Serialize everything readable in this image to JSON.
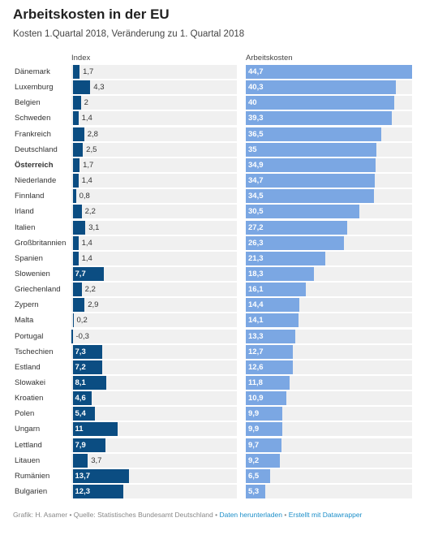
{
  "title": "Arbeitskosten in der EU",
  "subtitle": "Kosten 1.Quartal 2018, Veränderung zu 1. Quartal 2018",
  "footer": {
    "credit": "Grafik: H. Asamer",
    "sep1": " • ",
    "source": "Quelle: Statistisches Bundesamt Deutschland",
    "sep2": " • ",
    "download_link": "Daten herunterladen",
    "sep3": " • ",
    "made_with_link": "Erstellt mit Datawrapper"
  },
  "colors": {
    "index_bar": "#0b4d82",
    "cost_bar": "#7ba7e3",
    "track": "#f0f0f0",
    "link": "#1d8fc9"
  },
  "chart_data": {
    "type": "bar",
    "orientation": "horizontal",
    "categories": [
      "Dänemark",
      "Luxemburg",
      "Belgien",
      "Schweden",
      "Frankreich",
      "Deutschland",
      "Österreich",
      "Niederlande",
      "Finnland",
      "Irland",
      "Italien",
      "Großbritannien",
      "Spanien",
      "Slowenien",
      "Griechenland",
      "Zypern",
      "Malta",
      "Portugal",
      "Tschechien",
      "Estland",
      "Slowakei",
      "Kroatien",
      "Polen",
      "Ungarn",
      "Lettland",
      "Litauen",
      "Rumänien",
      "Bulgarien"
    ],
    "highlighted_category": "Österreich",
    "series": [
      {
        "name": "Index",
        "values": [
          1.7,
          4.3,
          2,
          1.4,
          2.8,
          2.5,
          1.7,
          1.4,
          0.8,
          2.2,
          3.1,
          1.4,
          1.4,
          7.7,
          2.2,
          2.9,
          0.2,
          -0.3,
          7.3,
          7.2,
          8.1,
          4.6,
          5.4,
          11,
          7.9,
          3.7,
          13.7,
          12.3
        ],
        "labels": [
          "1,7",
          "4,3",
          "2",
          "1,4",
          "2,8",
          "2,5",
          "1,7",
          "1,4",
          "0,8",
          "2,2",
          "3,1",
          "1,4",
          "1,4",
          "7,7",
          "2,2",
          "2,9",
          "0,2",
          "-0,3",
          "7,3",
          "7,2",
          "8,1",
          "4,6",
          "5,4",
          "11",
          "7,9",
          "3,7",
          "13,7",
          "12,3"
        ],
        "xlim": [
          -0.3,
          40
        ]
      },
      {
        "name": "Arbeitskosten",
        "values": [
          44.7,
          40.3,
          40,
          39.3,
          36.5,
          35,
          34.9,
          34.7,
          34.5,
          30.5,
          27.2,
          26.3,
          21.3,
          18.3,
          16.1,
          14.4,
          14.1,
          13.3,
          12.7,
          12.6,
          11.8,
          10.9,
          9.9,
          9.9,
          9.7,
          9.2,
          6.5,
          5.3
        ],
        "labels": [
          "44,7",
          "40,3",
          "40",
          "39,3",
          "36,5",
          "35",
          "34,9",
          "34,7",
          "34,5",
          "30,5",
          "27,2",
          "26,3",
          "21,3",
          "18,3",
          "16,1",
          "14,4",
          "14,1",
          "13,3",
          "12,7",
          "12,6",
          "11,8",
          "10,9",
          "9,9",
          "9,9",
          "9,7",
          "9,2",
          "6,5",
          "5,3"
        ],
        "xlim": [
          0,
          44.7
        ]
      }
    ]
  }
}
